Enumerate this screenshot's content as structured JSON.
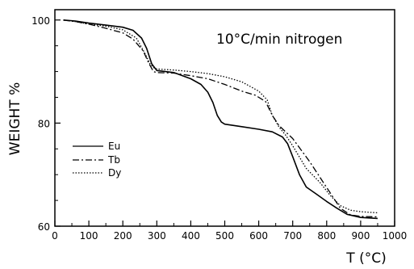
{
  "chart_data": {
    "type": "line",
    "title": "",
    "annotation": "10°C/min nitrogen",
    "xlabel": "T (°C)",
    "ylabel": "WEIGHT %",
    "xlim": [
      0,
      1000
    ],
    "ylim": [
      60,
      102
    ],
    "x_ticks": [
      0,
      100,
      200,
      300,
      400,
      500,
      600,
      700,
      800,
      900,
      1000
    ],
    "y_ticks": [
      60,
      80,
      100
    ],
    "grid": false,
    "legend_position": "left",
    "series": [
      {
        "name": "Eu",
        "style": "solid",
        "points": [
          [
            25,
            100
          ],
          [
            60,
            99.8
          ],
          [
            100,
            99.4
          ],
          [
            150,
            99
          ],
          [
            200,
            98.6
          ],
          [
            230,
            98
          ],
          [
            255,
            96.5
          ],
          [
            270,
            94.5
          ],
          [
            285,
            91.5
          ],
          [
            300,
            90.2
          ],
          [
            350,
            89.8
          ],
          [
            400,
            88.6
          ],
          [
            430,
            87.5
          ],
          [
            450,
            86
          ],
          [
            465,
            84
          ],
          [
            478,
            81.5
          ],
          [
            490,
            80.2
          ],
          [
            500,
            79.8
          ],
          [
            550,
            79.3
          ],
          [
            600,
            78.8
          ],
          [
            640,
            78.3
          ],
          [
            670,
            77.3
          ],
          [
            685,
            76
          ],
          [
            700,
            73.5
          ],
          [
            720,
            70
          ],
          [
            740,
            67.6
          ],
          [
            770,
            66.2
          ],
          [
            800,
            64.8
          ],
          [
            830,
            63.5
          ],
          [
            860,
            62.3
          ],
          [
            900,
            61.7
          ],
          [
            950,
            61.5
          ]
        ]
      },
      {
        "name": "Tb",
        "style": "dashdot",
        "points": [
          [
            25,
            100
          ],
          [
            60,
            99.7
          ],
          [
            100,
            99.2
          ],
          [
            150,
            98.4
          ],
          [
            200,
            97.5
          ],
          [
            230,
            96.3
          ],
          [
            260,
            94
          ],
          [
            275,
            91.8
          ],
          [
            290,
            90
          ],
          [
            300,
            89.8
          ],
          [
            350,
            89.7
          ],
          [
            400,
            89.2
          ],
          [
            450,
            88.6
          ],
          [
            500,
            87.5
          ],
          [
            550,
            86.2
          ],
          [
            590,
            85.4
          ],
          [
            620,
            84.2
          ],
          [
            640,
            81.5
          ],
          [
            660,
            79.5
          ],
          [
            700,
            77
          ],
          [
            750,
            72.5
          ],
          [
            780,
            69.5
          ],
          [
            810,
            66.5
          ],
          [
            840,
            63.5
          ],
          [
            870,
            62.2
          ],
          [
            900,
            61.9
          ],
          [
            950,
            61.8
          ]
        ]
      },
      {
        "name": "Dy",
        "style": "dotted",
        "points": [
          [
            25,
            100
          ],
          [
            60,
            99.7
          ],
          [
            100,
            99.2
          ],
          [
            150,
            98.8
          ],
          [
            200,
            98.1
          ],
          [
            240,
            96.5
          ],
          [
            265,
            93.5
          ],
          [
            280,
            91.5
          ],
          [
            290,
            90.8
          ],
          [
            300,
            90.5
          ],
          [
            350,
            90.3
          ],
          [
            400,
            90
          ],
          [
            450,
            89.6
          ],
          [
            500,
            89
          ],
          [
            550,
            88
          ],
          [
            600,
            86.2
          ],
          [
            625,
            84.5
          ],
          [
            640,
            81.5
          ],
          [
            660,
            79.2
          ],
          [
            680,
            77.6
          ],
          [
            700,
            75.6
          ],
          [
            740,
            71.2
          ],
          [
            780,
            68.5
          ],
          [
            810,
            66
          ],
          [
            840,
            64
          ],
          [
            870,
            63.1
          ],
          [
            900,
            62.8
          ],
          [
            950,
            62.6
          ]
        ]
      }
    ]
  }
}
